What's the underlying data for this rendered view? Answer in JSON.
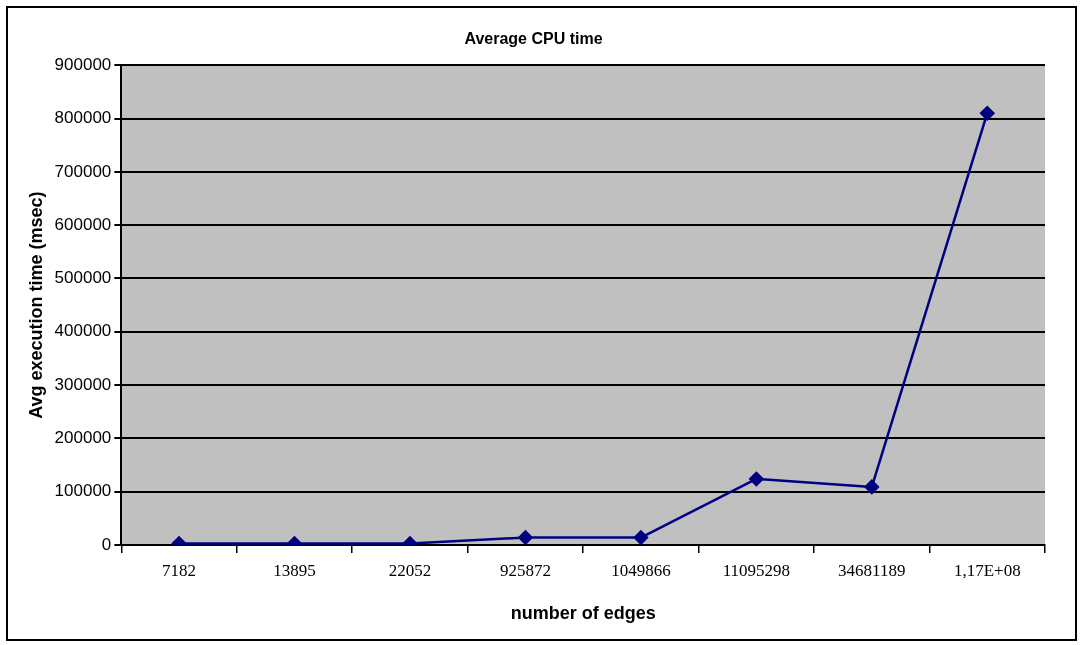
{
  "chart_data": {
    "type": "line",
    "title": "Average CPU time",
    "xlabel": "number of edges",
    "ylabel": "Avg execution time (msec)",
    "categories": [
      "7182",
      "13895",
      "22052",
      "925872",
      "1049866",
      "11095298",
      "34681189",
      "1,17E+08"
    ],
    "series": [
      {
        "color": "#000080",
        "values": [
          3000,
          3000,
          3000,
          14000,
          14000,
          124000,
          109000,
          810000
        ]
      }
    ],
    "ylim": [
      0,
      900000
    ],
    "yticks": [
      0,
      100000,
      200000,
      300000,
      400000,
      500000,
      600000,
      700000,
      800000,
      900000
    ],
    "grid": "y",
    "legend": false,
    "marker": "diamond",
    "line_style": "solid"
  }
}
